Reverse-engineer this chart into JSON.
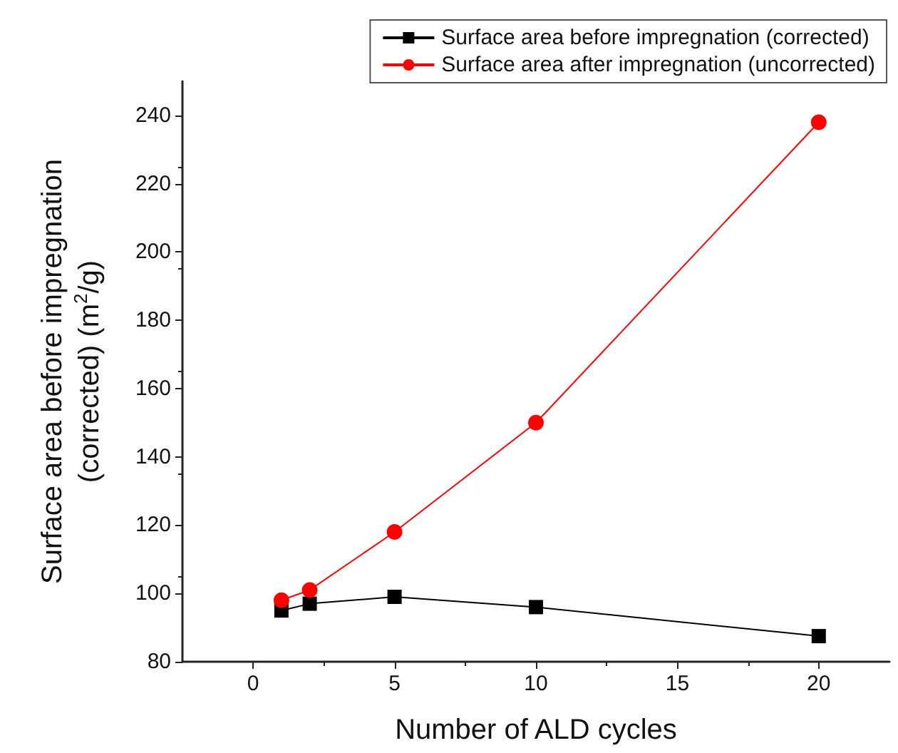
{
  "chart_data": {
    "type": "line",
    "xlabel": "Number of ALD cycles",
    "ylabel": "Surface area before impregnation (corrected) (m$^{2}$/g)",
    "x": [
      1,
      2,
      5,
      10,
      20
    ],
    "series": [
      {
        "name": "Surface area before impregnation (corrected)",
        "color": "#000000",
        "marker": "square",
        "values": [
          95,
          97,
          99,
          96,
          87.5
        ]
      },
      {
        "name": "Surface area after impregnation (uncorrected)",
        "color": "#ff0000",
        "marker": "circle",
        "values": [
          98,
          101,
          118,
          150,
          238
        ]
      }
    ],
    "xlim": [
      -2.5,
      22.5
    ],
    "xticks": [
      0,
      5,
      10,
      15,
      20
    ],
    "ylim": [
      80,
      250
    ],
    "yticks": [
      80,
      100,
      120,
      140,
      160,
      180,
      200,
      220,
      240
    ],
    "grid": false,
    "legend": "top right"
  }
}
